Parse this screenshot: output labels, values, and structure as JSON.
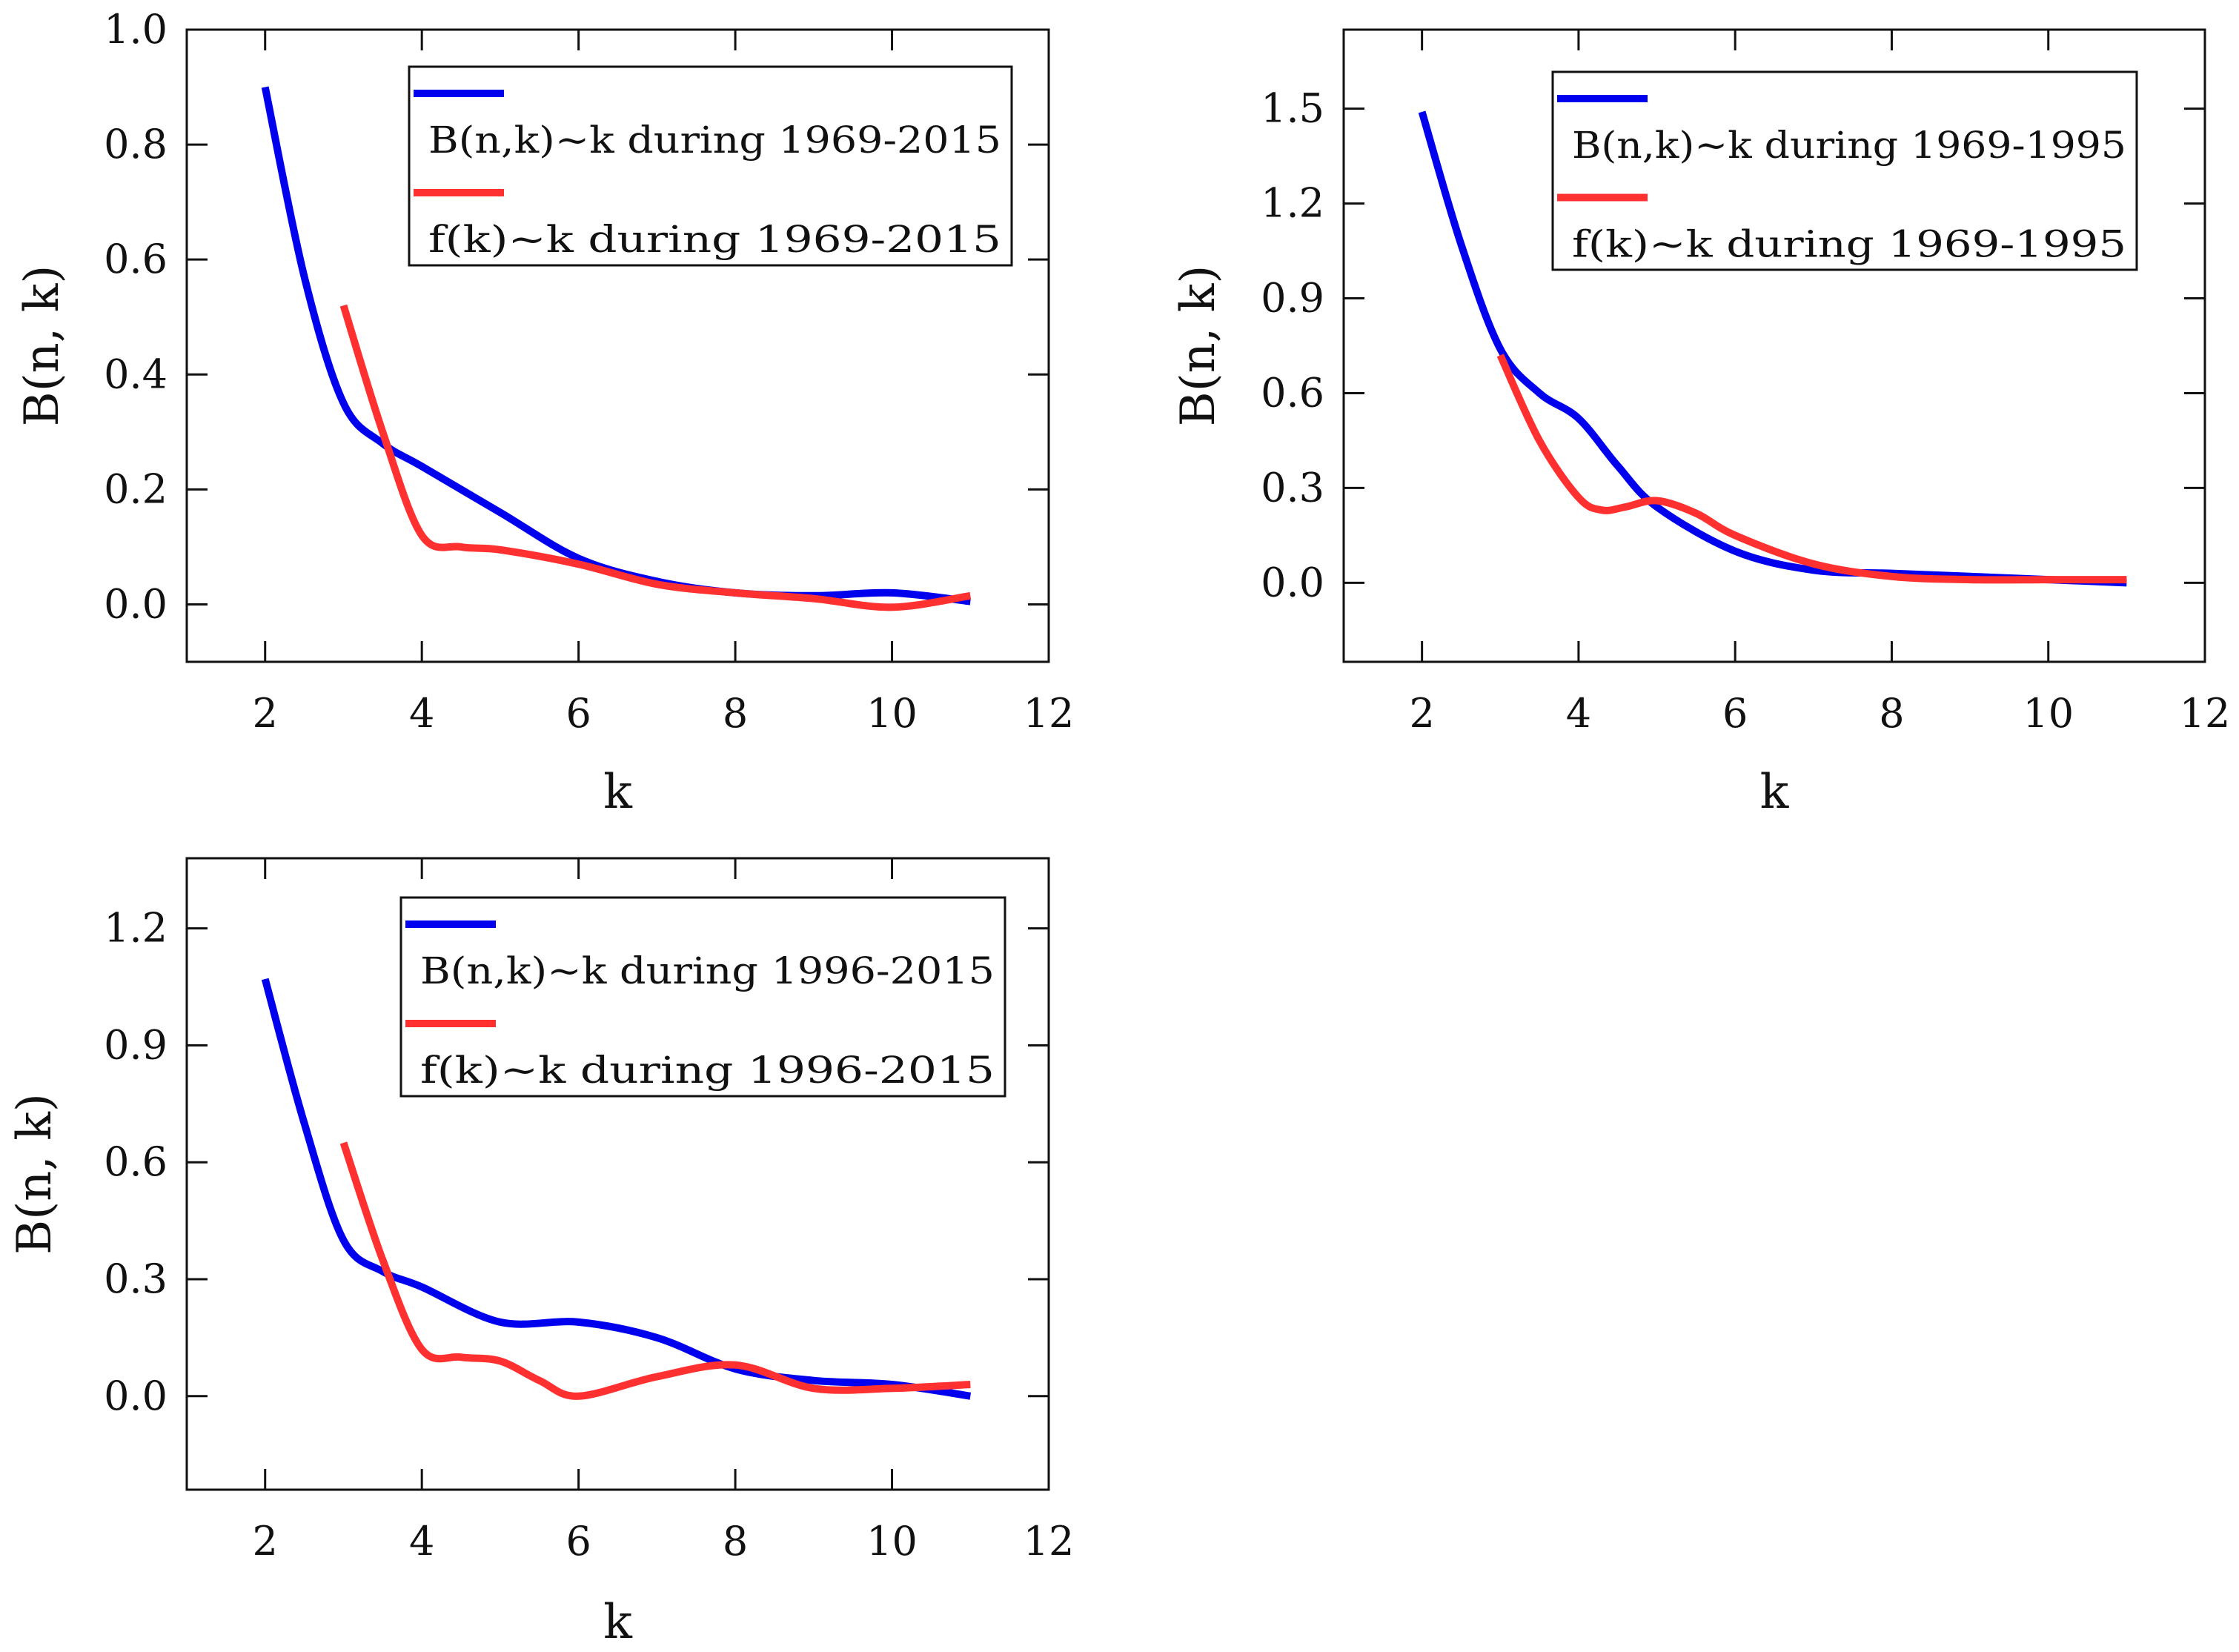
{
  "chart_data": [
    {
      "type": "line",
      "xlabel": "k",
      "ylabel": "B(n, k)",
      "xlim": [
        1,
        12
      ],
      "ylim": [
        -0.1,
        1.0
      ],
      "xticks": [
        2,
        4,
        6,
        8,
        10,
        12
      ],
      "yticks": [
        0.0,
        0.2,
        0.4,
        0.6,
        0.8,
        1.0
      ],
      "xtick_labels": [
        "2",
        "4",
        "6",
        "8",
        "10",
        "12"
      ],
      "ytick_labels": [
        "0.0",
        "0.2",
        "0.4",
        "0.6",
        "0.8",
        "1.0"
      ],
      "legend_position": "top-right",
      "series": [
        {
          "name": "B(n,k)~k during 1969-2015",
          "color": "#0000ee",
          "x": [
            2,
            2.5,
            3,
            3.5,
            4,
            5,
            6,
            7,
            8,
            9,
            10,
            11
          ],
          "y": [
            0.9,
            0.57,
            0.35,
            0.28,
            0.24,
            0.16,
            0.08,
            0.04,
            0.02,
            0.015,
            0.02,
            0.005
          ]
        },
        {
          "name": "f(k)~k during 1969-2015",
          "color": "#ff3030",
          "x": [
            3,
            3.5,
            4,
            4.5,
            5,
            6,
            7,
            8,
            9,
            10,
            11
          ],
          "y": [
            0.52,
            0.3,
            0.12,
            0.1,
            0.095,
            0.07,
            0.035,
            0.02,
            0.01,
            -0.005,
            0.015
          ]
        }
      ]
    },
    {
      "type": "line",
      "xlabel": "k",
      "ylabel": "B(n, k)",
      "xlim": [
        1,
        12
      ],
      "ylim": [
        -0.25,
        1.75
      ],
      "xticks": [
        2,
        4,
        6,
        8,
        10,
        12
      ],
      "yticks": [
        0.0,
        0.3,
        0.6,
        0.9,
        1.2,
        1.5
      ],
      "xtick_labels": [
        "2",
        "4",
        "6",
        "8",
        "10",
        "12"
      ],
      "ytick_labels": [
        "0.0",
        "0.3",
        "0.6",
        "0.9",
        "1.2",
        "1.5"
      ],
      "legend_position": "top-right",
      "series": [
        {
          "name": "B(n,k)~k during 1969-1995",
          "color": "#0000ee",
          "x": [
            2,
            2.5,
            3,
            3.5,
            4,
            4.5,
            5,
            6,
            7,
            8,
            9,
            10,
            11
          ],
          "y": [
            1.49,
            1.07,
            0.74,
            0.6,
            0.52,
            0.37,
            0.24,
            0.1,
            0.04,
            0.03,
            0.02,
            0.01,
            0.0
          ]
        },
        {
          "name": "f(k)~k during 1969-1995",
          "color": "#ff3030",
          "x": [
            3,
            3.5,
            4,
            4.3,
            4.6,
            5,
            5.5,
            6,
            7,
            8,
            9,
            10,
            11
          ],
          "y": [
            0.72,
            0.45,
            0.27,
            0.23,
            0.24,
            0.26,
            0.22,
            0.15,
            0.06,
            0.02,
            0.01,
            0.01,
            0.01
          ]
        }
      ]
    },
    {
      "type": "line",
      "xlabel": "k",
      "ylabel": "B(n, k)",
      "xlim": [
        1,
        12
      ],
      "ylim": [
        -0.24,
        1.38
      ],
      "xticks": [
        2,
        4,
        6,
        8,
        10,
        12
      ],
      "yticks": [
        0.0,
        0.3,
        0.6,
        0.9,
        1.2
      ],
      "xtick_labels": [
        "2",
        "4",
        "6",
        "8",
        "10",
        "12"
      ],
      "ytick_labels": [
        "0.0",
        "0.3",
        "0.6",
        "0.9",
        "1.2"
      ],
      "legend_position": "top-right",
      "series": [
        {
          "name": "B(n,k)~k during 1996-2015",
          "color": "#0000ee",
          "x": [
            2,
            2.5,
            3,
            3.5,
            4,
            5,
            6,
            7,
            8,
            9,
            10,
            11
          ],
          "y": [
            1.07,
            0.7,
            0.4,
            0.32,
            0.28,
            0.19,
            0.19,
            0.15,
            0.07,
            0.04,
            0.03,
            0.0
          ]
        },
        {
          "name": "f(k)~k during 1996-2015",
          "color": "#ff3030",
          "x": [
            3,
            3.5,
            4,
            4.5,
            5,
            5.5,
            6,
            7,
            8,
            9,
            10,
            11
          ],
          "y": [
            0.65,
            0.35,
            0.12,
            0.1,
            0.09,
            0.04,
            0.0,
            0.05,
            0.08,
            0.02,
            0.02,
            0.03
          ]
        }
      ]
    }
  ]
}
